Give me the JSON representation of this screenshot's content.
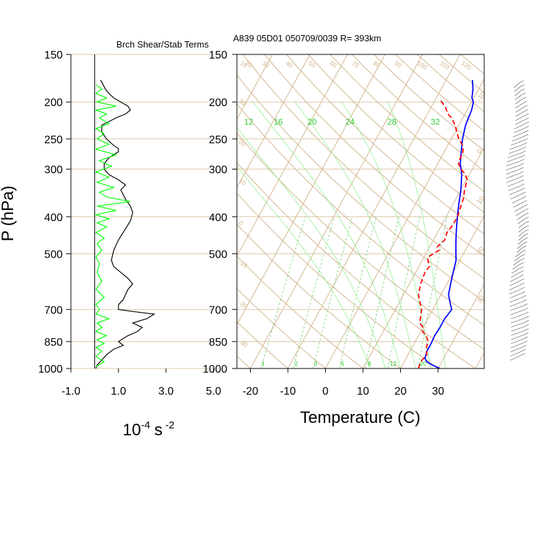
{
  "chart_data": [
    {
      "type": "line",
      "title": "Brch Shear/Stab Terms",
      "xlabel": "10",
      "xlabel_exp": "-4",
      "xlabel_unit": "s",
      "xlabel_unit_exp": "-2",
      "ylabel": "P (hPa)",
      "xlim": [
        -1.0,
        5.0
      ],
      "x_tick_values": [
        -1,
        1,
        3,
        5
      ],
      "x_tick_labels": [
        "-1.0",
        "1.0",
        "3.0",
        "5.0"
      ],
      "y_scale": "log",
      "ylim": [
        1000,
        150
      ],
      "y_ticks": [
        "150",
        "200",
        "250",
        "300",
        "400",
        "500",
        "700",
        "850",
        "1000"
      ],
      "colors": {
        "shear": "#000000",
        "stability": "#00ff00",
        "zero_line": "#000000"
      },
      "series": [
        {
          "x": [
            0.25,
            0.35,
            0.45,
            0.6,
            0.8,
            1.1,
            1.4,
            1.5,
            1.3,
            0.9,
            0.6,
            0.3,
            0.3,
            0.5,
            0.8,
            1.0,
            1.0,
            0.6,
            0.4,
            0.4,
            0.6,
            1.0,
            1.3,
            1.1,
            1.2,
            1.3,
            1.5,
            1.6,
            1.5,
            1.3,
            1.0,
            0.8,
            0.7,
            0.8,
            1.1,
            1.4,
            1.6,
            1.4,
            1.3,
            1.2,
            1.0,
            1.0,
            1.7,
            2.5,
            2.2,
            1.6,
            2.0,
            1.8,
            1.4,
            1.0,
            1.2,
            0.8,
            0.5,
            0.3,
            0.1,
            0.05
          ],
          "y": [
            175,
            180,
            185,
            190,
            195,
            200,
            205,
            210,
            215,
            220,
            225,
            230,
            240,
            250,
            260,
            265,
            270,
            280,
            290,
            300,
            310,
            320,
            330,
            340,
            350,
            360,
            375,
            390,
            410,
            430,
            460,
            490,
            520,
            540,
            560,
            580,
            600,
            620,
            640,
            660,
            680,
            700,
            710,
            720,
            740,
            760,
            780,
            800,
            820,
            850,
            870,
            890,
            920,
            950,
            980,
            1000
          ]
        },
        {
          "x": [
            0.05,
            0.3,
            0.05,
            0.5,
            0.1,
            0.9,
            0.05,
            0.5,
            0.2,
            0.6,
            0.05,
            0.4,
            0.1,
            0.6,
            0.05,
            0.9,
            0.2,
            0.7,
            0.05,
            0.6,
            0.1,
            0.8,
            0.2,
            0.5,
            1.5,
            0.1,
            0.9,
            0.05,
            0.6,
            0.1,
            0.5,
            0.05,
            0.4,
            0.1,
            0.3,
            0.05,
            0.2,
            0.1,
            0.3,
            0.05,
            0.4,
            0.05,
            0.2,
            0.05,
            0.6,
            0.1,
            0.3,
            0.05,
            0.5,
            0.1,
            0.4,
            0.05,
            0.3,
            0.05,
            0.4,
            0.05
          ],
          "y": [
            180,
            185,
            190,
            195,
            200,
            205,
            210,
            215,
            220,
            228,
            235,
            242,
            250,
            258,
            266,
            275,
            285,
            295,
            305,
            315,
            325,
            335,
            345,
            355,
            365,
            375,
            385,
            395,
            405,
            415,
            425,
            440,
            455,
            470,
            490,
            510,
            530,
            560,
            590,
            620,
            650,
            680,
            700,
            720,
            740,
            760,
            780,
            800,
            820,
            840,
            860,
            880,
            900,
            930,
            960,
            990
          ]
        }
      ]
    },
    {
      "type": "line",
      "title": "A839 05D01 050709/0039 R= 393km",
      "xlabel": "Temperature (C)",
      "xlim": [
        -25,
        40
      ],
      "x_ticks": [
        -20,
        -10,
        0,
        10,
        20,
        30
      ],
      "y_scale": "log",
      "ylim": [
        1000,
        150
      ],
      "y_ticks": [
        "150",
        "200",
        "250",
        "300",
        "400",
        "500",
        "700",
        "850",
        "1000"
      ],
      "dry_adiabat_labels": [
        "-30",
        "-20",
        "-10",
        "0",
        "10",
        "20",
        "30",
        "40",
        "50",
        "60",
        "70",
        "80",
        "90",
        "100",
        "110",
        "120",
        "130",
        "140",
        "150"
      ],
      "mixing_ratio_labels": [
        "1",
        "2",
        "3",
        "5",
        "8",
        "12",
        "20"
      ],
      "moist_adiabat_labels": [
        "12",
        "16",
        "20",
        "24",
        "28",
        "32"
      ],
      "isotherm_labels": [
        "-10",
        "0",
        "10",
        "20",
        "30"
      ],
      "colors": {
        "background_lines": "#d2b48c",
        "moist_adiabats": "#90ee90",
        "temperature": "#0000ff",
        "dewpoint": "#ff0000"
      },
      "series": [
        {
          "x": [
            30.5,
            28,
            26,
            25,
            24.5,
            24.5,
            24.3,
            24.5,
            24.5,
            24.8,
            25,
            24,
            22,
            21,
            20,
            19,
            18,
            17,
            16,
            14.5,
            13,
            11.5,
            10,
            8,
            6,
            4.5,
            3,
            1.8,
            1.2,
            0.5,
            -0.5,
            -1.5,
            -3
          ],
          "y": [
            1000,
            980,
            960,
            940,
            900,
            860,
            820,
            780,
            740,
            720,
            700,
            680,
            640,
            600,
            560,
            520,
            500,
            480,
            460,
            430,
            400,
            370,
            340,
            310,
            290,
            270,
            250,
            230,
            210,
            200,
            195,
            185,
            175
          ]
        },
        {
          "x": [
            24.8,
            24.5,
            24.5,
            25,
            24,
            23.5,
            23,
            22,
            20.5,
            20,
            18.5,
            18,
            17.5,
            17,
            16,
            15,
            14,
            13,
            12.5,
            12.8,
            11.5,
            11,
            12,
            13,
            12,
            12.5,
            13,
            12.5,
            13,
            13,
            12.5,
            12,
            11,
            10.2,
            9,
            7,
            5.5,
            5.2,
            5,
            4,
            2,
            0.5,
            -1,
            -2,
            -3,
            -4.5,
            -6.5,
            -8.5
          ],
          "y": [
            1000,
            975,
            950,
            920,
            890,
            860,
            840,
            820,
            800,
            780,
            760,
            740,
            720,
            700,
            680,
            660,
            640,
            600,
            560,
            540,
            520,
            510,
            500,
            490,
            480,
            470,
            460,
            440,
            420,
            400,
            380,
            360,
            340,
            320,
            310,
            300,
            290,
            280,
            270,
            260,
            250,
            240,
            230,
            225,
            220,
            215,
            205,
            198
          ]
        }
      ]
    }
  ]
}
